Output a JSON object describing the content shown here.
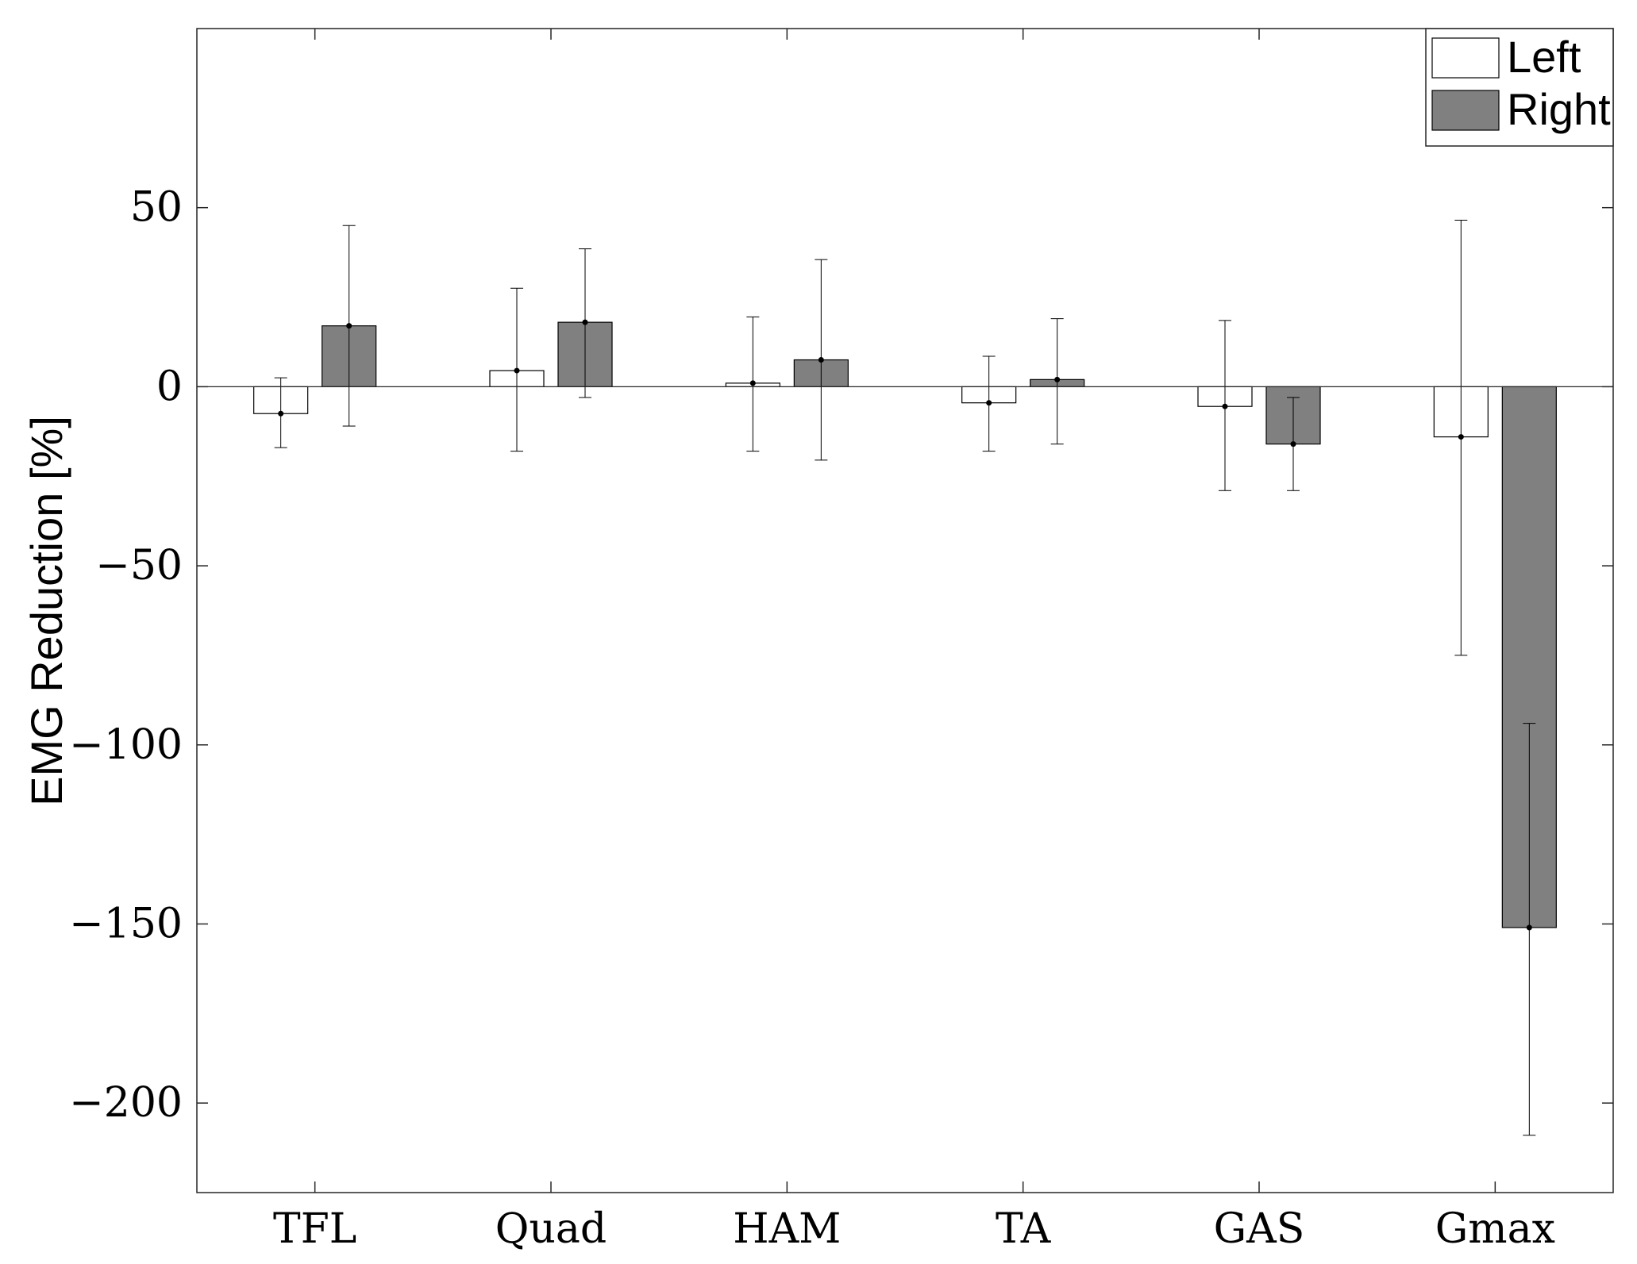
{
  "chart_data": {
    "type": "bar",
    "title": "",
    "xlabel": "",
    "ylabel": "EMG Reduction [%]",
    "ylim": [
      -225,
      100
    ],
    "yticks": [
      50,
      0,
      -50,
      -100,
      -150,
      -200
    ],
    "ytick_labels": [
      "50",
      "0",
      "−50",
      "−100",
      "−150",
      "−200"
    ],
    "grid": false,
    "legend_position": "top-right",
    "categories": [
      "TFL",
      "Quad",
      "HAM",
      "TA",
      "GAS",
      "Gmax"
    ],
    "series": [
      {
        "name": "Left",
        "color": "#ffffff",
        "values": [
          -7.5,
          4.5,
          1,
          -4.5,
          -5.5,
          -14
        ],
        "error_low": [
          -17,
          -18,
          -18,
          -18,
          -29,
          -75
        ],
        "error_high": [
          2.5,
          27.5,
          19.5,
          8.5,
          18.5,
          46.5
        ]
      },
      {
        "name": "Right",
        "color": "#808080",
        "values": [
          17,
          18,
          7.5,
          2,
          -16,
          -151
        ],
        "error_low": [
          -11,
          -3,
          -20.5,
          -16,
          -29,
          -209
        ],
        "error_high": [
          45,
          38.5,
          35.5,
          19,
          -3,
          -94
        ]
      }
    ],
    "zero_line": true
  }
}
